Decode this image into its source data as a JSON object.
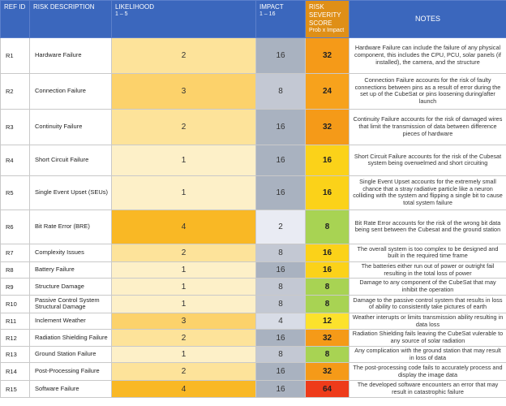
{
  "headers": {
    "ref": "REF ID",
    "desc": "RISK DESCRIPTION",
    "likelihood": "LIKELIHOOD",
    "likelihood_sub": "1 – 5",
    "impact": "IMPACT",
    "impact_sub": "1 – 16",
    "severity": "RISK SEVERITY SCORE",
    "severity_sub": "Prob x Impact",
    "notes": "NOTES"
  },
  "colors": {
    "header_blue": "#3b67bd",
    "header_orange": "#df8f17",
    "sev_8": "#a8d353",
    "sev_12": "#fce22c",
    "sev_16": "#fbd219",
    "sev_24": "#f7a21c",
    "sev_32": "#f59a18",
    "sev_64": "#ee3b1a"
  },
  "rows": [
    {
      "ref": "R1",
      "desc": "Hardware Failure",
      "likelihood": "2",
      "impact": "16",
      "severity": "32",
      "notes": "Hardware Failure can include the failure of any physical component, this includes the CPU, PCU, solar panels (if installed), the camera, and the structure"
    },
    {
      "ref": "R2",
      "desc": "Connection Failure",
      "likelihood": "3",
      "impact": "8",
      "severity": "24",
      "notes": "Connection Failure accounts for the risk of faulty connections between pins as a result of error during the set up of the CubeSat or pins loosening during/after launch"
    },
    {
      "ref": "R3",
      "desc": "Continuity Failure",
      "likelihood": "2",
      "impact": "16",
      "severity": "32",
      "notes": "Continuity Failure accounts for the risk of damaged wires that limit the transmission of data between difference pieces of hardware"
    },
    {
      "ref": "R4",
      "desc": "Short Circuit Failure",
      "likelihood": "1",
      "impact": "16",
      "severity": "16",
      "notes": "Short Circuit Failure accounts for the risk of the Cubesat system being overwelmed and short circuiting"
    },
    {
      "ref": "R5",
      "desc": "Single Event Upset (SEUs)",
      "likelihood": "1",
      "impact": "16",
      "severity": "16",
      "notes": "Single Event Upset accounts for the extremely small chance that a stray radiative particle like a neuron colliding with the system and flipping a single bit to cause total system failure"
    },
    {
      "ref": "R6",
      "desc": "Bit Rate Error (BRE)",
      "likelihood": "4",
      "impact": "2",
      "severity": "8",
      "notes": "Bit Rate Error accounts for the risk of the wrong bit data being sent between the Cubesat and the ground station"
    },
    {
      "ref": "R7",
      "desc": "Complexity Issues",
      "likelihood": "2",
      "impact": "8",
      "severity": "16",
      "notes": "The overall system is too complex to be designed and built in the required time frame"
    },
    {
      "ref": "R8",
      "desc": "Battery Failure",
      "likelihood": "1",
      "impact": "16",
      "severity": "16",
      "notes": "The batteries either run out of power or outright fail resulting in the total loss of power"
    },
    {
      "ref": "R9",
      "desc": "Structure Damage",
      "likelihood": "1",
      "impact": "8",
      "severity": "8",
      "notes": "Damage to any component of the CubeSat that may inhibit the operation"
    },
    {
      "ref": "R10",
      "desc": "Passive Control System Structural Damage",
      "likelihood": "1",
      "impact": "8",
      "severity": "8",
      "notes": "Damage to the passive control system that results in loss of ability to consistently take pictures of earth"
    },
    {
      "ref": "R11",
      "desc": "Inclement Weather",
      "likelihood": "3",
      "impact": "4",
      "severity": "12",
      "notes": "Weather interupts or limits transmission ability resulting in data loss"
    },
    {
      "ref": "R12",
      "desc": "Radiation Shielding Failure",
      "likelihood": "2",
      "impact": "16",
      "severity": "32",
      "notes": "Radiation Shielding fails leaving the CubeSat vulerable to any source of solar radiation"
    },
    {
      "ref": "R13",
      "desc": "Ground Station Failure",
      "likelihood": "1",
      "impact": "8",
      "severity": "8",
      "notes": "Any complication with the ground station that may result in loss of data"
    },
    {
      "ref": "R14",
      "desc": "Post-Processing Failure",
      "likelihood": "2",
      "impact": "16",
      "severity": "32",
      "notes": "The post-processing code fails to accurately process and display the image data"
    },
    {
      "ref": "R15",
      "desc": "Software Failure",
      "likelihood": "4",
      "impact": "16",
      "severity": "64",
      "notes": "The developed software encounters an error that may result in catastrophic failure"
    }
  ]
}
